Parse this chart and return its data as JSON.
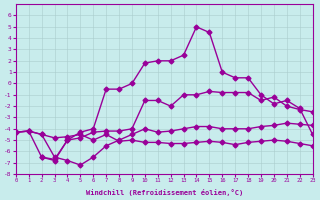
{
  "xlabel": "Windchill (Refroidissement éolien,°C)",
  "ylabel": "",
  "bg_color": "#c8ecec",
  "line_color": "#990099",
  "xlim": [
    0,
    23
  ],
  "ylim": [
    -8,
    7
  ],
  "xticks": [
    0,
    1,
    2,
    3,
    4,
    5,
    6,
    7,
    8,
    9,
    10,
    11,
    12,
    13,
    14,
    15,
    16,
    17,
    18,
    19,
    20,
    21,
    22,
    23
  ],
  "yticks": [
    -8,
    -7,
    -6,
    -5,
    -4,
    -3,
    -2,
    -1,
    0,
    1,
    2,
    3,
    4,
    5,
    6
  ],
  "line1_x": [
    0,
    1,
    2,
    3,
    4,
    5,
    6,
    7,
    8,
    9,
    10,
    11,
    12,
    13,
    14,
    15,
    16,
    17,
    18,
    19,
    20,
    21,
    22,
    23
  ],
  "line1_y": [
    -4.3,
    -4.2,
    -4.5,
    -4.8,
    -4.7,
    -4.5,
    -5.0,
    -4.5,
    -5.1,
    -5.0,
    -5.2,
    -5.2,
    -5.3,
    -5.3,
    -5.2,
    -5.1,
    -5.2,
    -5.4,
    -5.2,
    -5.1,
    -5.0,
    -5.1,
    -5.3,
    -5.5
  ],
  "line2_x": [
    0,
    1,
    2,
    3,
    4,
    5,
    6,
    7,
    8,
    9,
    10,
    11,
    12,
    13,
    14,
    15,
    16,
    17,
    18,
    19,
    20,
    21,
    22,
    23
  ],
  "line2_y": [
    -4.3,
    -4.2,
    -4.5,
    -6.5,
    -6.8,
    -7.2,
    -6.5,
    -5.5,
    -5.0,
    -4.5,
    -4.0,
    -4.3,
    -4.2,
    -4.0,
    -3.8,
    -3.8,
    -4.0,
    -4.0,
    -4.0,
    -3.8,
    -3.7,
    -3.5,
    -3.6,
    -3.7
  ],
  "line3_x": [
    0,
    1,
    2,
    3,
    4,
    5,
    6,
    7,
    8,
    9,
    10,
    11,
    12,
    13,
    14,
    15,
    16,
    17,
    18,
    19,
    20,
    21,
    22,
    23
  ],
  "line3_y": [
    -4.3,
    -4.2,
    -6.5,
    -6.7,
    -5.0,
    -4.8,
    -4.3,
    -4.2,
    -4.2,
    -4.0,
    -1.5,
    -1.5,
    -2.0,
    -1.0,
    -1.0,
    -0.7,
    -0.8,
    -0.8,
    -0.8,
    -1.5,
    -1.2,
    -2.0,
    -2.3,
    -2.5
  ],
  "line4_x": [
    2,
    3,
    4,
    5,
    6,
    7,
    8,
    9,
    10,
    11,
    12,
    13,
    14,
    15,
    16,
    17,
    18,
    19,
    20,
    21,
    22,
    23
  ],
  "line4_y": [
    -6.5,
    -6.8,
    -5.0,
    -4.3,
    -4.0,
    -0.5,
    -0.5,
    0.0,
    1.8,
    2.0,
    2.0,
    2.5,
    5.0,
    4.5,
    1.0,
    0.5,
    0.5,
    -1.0,
    -1.8,
    -1.5,
    -2.2,
    -4.5
  ]
}
